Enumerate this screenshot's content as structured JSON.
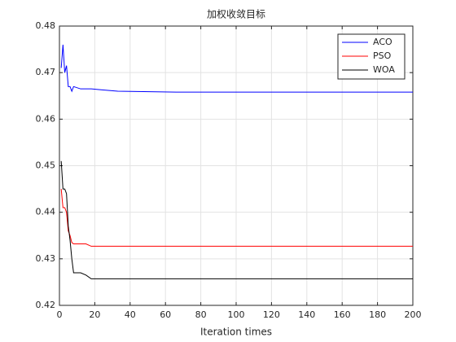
{
  "chart_data": {
    "type": "line",
    "title": "加权收敛目标",
    "x_label": "Iteration times",
    "x": [
      1,
      2,
      3,
      4,
      5,
      6,
      7,
      8,
      12,
      15,
      18,
      33,
      66,
      200
    ],
    "series": [
      {
        "name": "ACO",
        "color": "#0000ff",
        "values": [
          0.471,
          0.476,
          0.47,
          0.4715,
          0.467,
          0.467,
          0.466,
          0.467,
          0.4665,
          0.4665,
          0.4665,
          0.466,
          0.4658,
          0.4658
        ]
      },
      {
        "name": "PSO",
        "color": "#ff0000",
        "values": [
          0.445,
          0.441,
          0.441,
          0.44,
          0.436,
          0.435,
          0.4335,
          0.4332,
          0.4332,
          0.4332,
          0.4327,
          0.4327,
          0.4327,
          0.4327
        ]
      },
      {
        "name": "WOA",
        "color": "#000000",
        "values": [
          0.451,
          0.445,
          0.445,
          0.444,
          0.437,
          0.434,
          0.43,
          0.427,
          0.427,
          0.4265,
          0.4257,
          0.4257,
          0.4257,
          0.4257
        ]
      }
    ],
    "xlim": [
      0,
      200
    ],
    "xticks": [
      0,
      20,
      40,
      60,
      80,
      100,
      120,
      140,
      160,
      180,
      200
    ],
    "ylim": [
      0.42,
      0.48
    ],
    "yticks": [
      0.42,
      0.43,
      0.44,
      0.45,
      0.46,
      0.47,
      0.48
    ],
    "grid": true,
    "legend": "upper right"
  }
}
